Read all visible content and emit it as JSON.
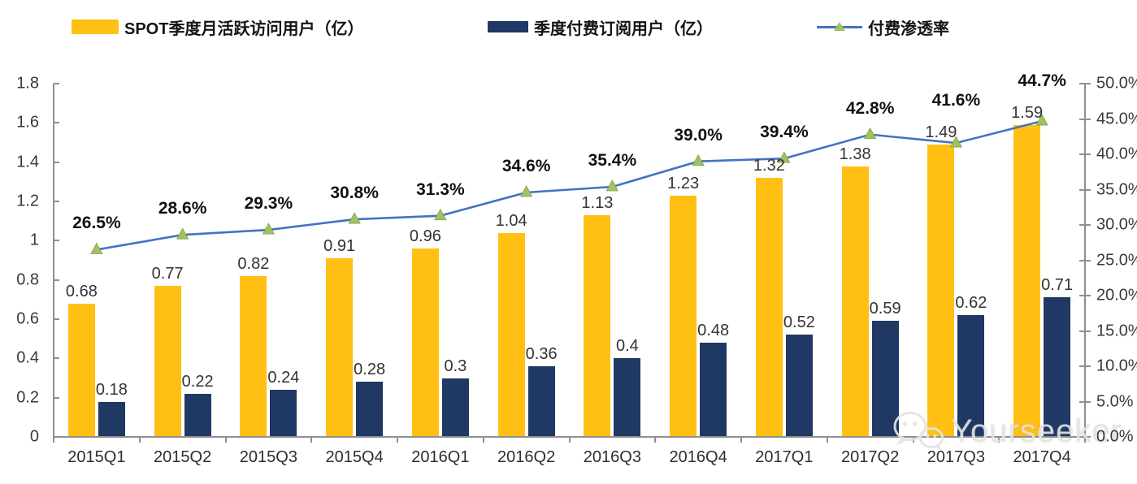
{
  "legend": {
    "items": [
      {
        "label": "SPOT季度月活跃访问用户（亿）",
        "swatch": "bar",
        "color": "#FFC013"
      },
      {
        "label": "季度付费订阅用户（亿）",
        "swatch": "bar",
        "color": "#1F3864"
      },
      {
        "label": "付费渗透率",
        "swatch": "line",
        "color": "#4472C4",
        "marker_color": "#A3C15E"
      }
    ]
  },
  "watermark": {
    "text": "Yourseeker",
    "icon": "wechat-icon"
  },
  "chart_data": {
    "type": "combo-bar-line",
    "categories": [
      "2015Q1",
      "2015Q2",
      "2015Q3",
      "2015Q4",
      "2016Q1",
      "2016Q2",
      "2016Q3",
      "2016Q4",
      "2017Q1",
      "2017Q2",
      "2017Q3",
      "2017Q4"
    ],
    "series": [
      {
        "name": "SPOT季度月活跃访问用户（亿）",
        "type": "bar",
        "axis": "left",
        "color": "#FFC013",
        "values": [
          0.68,
          0.77,
          0.82,
          0.91,
          0.96,
          1.04,
          1.13,
          1.23,
          1.32,
          1.38,
          1.49,
          1.59
        ],
        "labels": [
          "0.68",
          "0.77",
          "0.82",
          "0.91",
          "0.96",
          "1.04",
          "1.13",
          "1.23",
          "1.32",
          "1.38",
          "1.49",
          "1.59"
        ]
      },
      {
        "name": "季度付费订阅用户（亿）",
        "type": "bar",
        "axis": "left",
        "color": "#1F3864",
        "values": [
          0.18,
          0.22,
          0.24,
          0.28,
          0.3,
          0.36,
          0.4,
          0.48,
          0.52,
          0.59,
          0.62,
          0.71
        ],
        "labels": [
          "0.18",
          "0.22",
          "0.24",
          "0.28",
          "0.3",
          "0.36",
          "0.4",
          "0.48",
          "0.52",
          "0.59",
          "0.62",
          "0.71"
        ]
      },
      {
        "name": "付费渗透率",
        "type": "line",
        "axis": "right",
        "color": "#4472C4",
        "marker": "triangle",
        "marker_color": "#A3C15E",
        "values": [
          26.5,
          28.6,
          29.3,
          30.8,
          31.3,
          34.6,
          35.4,
          39.0,
          39.4,
          42.8,
          41.6,
          44.7
        ],
        "labels": [
          "26.5%",
          "28.6%",
          "29.3%",
          "30.8%",
          "31.3%",
          "34.6%",
          "35.4%",
          "39.0%",
          "39.4%",
          "42.8%",
          "41.6%",
          "44.7%"
        ]
      }
    ],
    "left_axis": {
      "min": 0,
      "max": 1.8,
      "tick_labels": [
        "0",
        "0.2",
        "0.4",
        "0.6",
        "0.8",
        "1",
        "1.2",
        "1.4",
        "1.6",
        "1.8"
      ]
    },
    "right_axis": {
      "min": 0,
      "max": 50,
      "tick_labels": [
        "0.0%",
        "5.0%",
        "10.0%",
        "15.0%",
        "20.0%",
        "25.0%",
        "30.0%",
        "35.0%",
        "40.0%",
        "45.0%",
        "50.0%"
      ]
    },
    "grid": "off",
    "legend_position": "top"
  }
}
